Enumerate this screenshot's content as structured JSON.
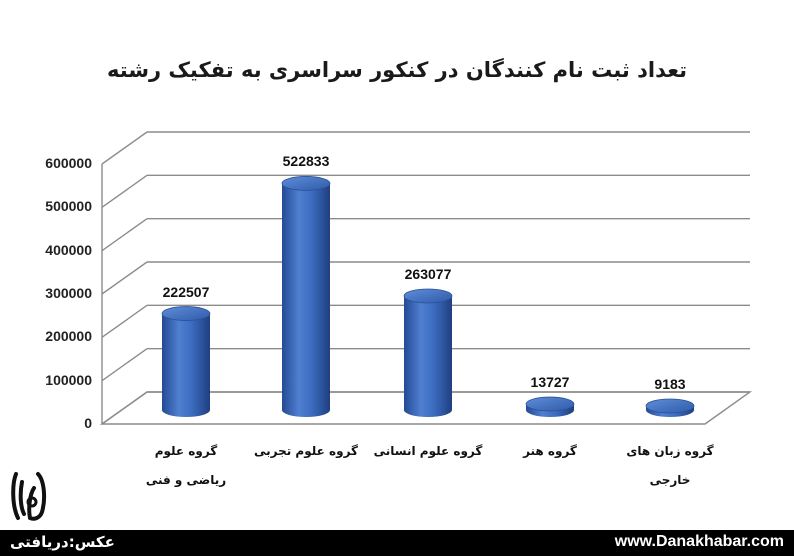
{
  "chart_data": {
    "type": "bar",
    "title": "تعداد ثبت نام کنندگان در کنکور سراسری به تفکیک رشته",
    "categories": [
      [
        "گروه علوم",
        "ریاضی و فنی"
      ],
      [
        "گروه علوم تجربی"
      ],
      [
        "گروه علوم انسانی"
      ],
      [
        "گروه هنر"
      ],
      [
        "گروه زبان های",
        "خارجی"
      ]
    ],
    "values": [
      222507,
      522833,
      263077,
      13727,
      9183
    ],
    "value_labels": [
      "222507",
      "522833",
      "263077",
      "13727",
      "9183"
    ],
    "yticks": [
      "0",
      "100000",
      "200000",
      "300000",
      "400000",
      "500000",
      "600000"
    ],
    "ylim": [
      0,
      600000
    ],
    "grid": true,
    "style": "3d-cylinder",
    "bar_color": "#3a66b6"
  },
  "footer": {
    "credit": "عکس:دریافتی",
    "site": "www.Danakhabar.com"
  },
  "logo": {
    "icon": "danakhabar-logo-icon"
  }
}
